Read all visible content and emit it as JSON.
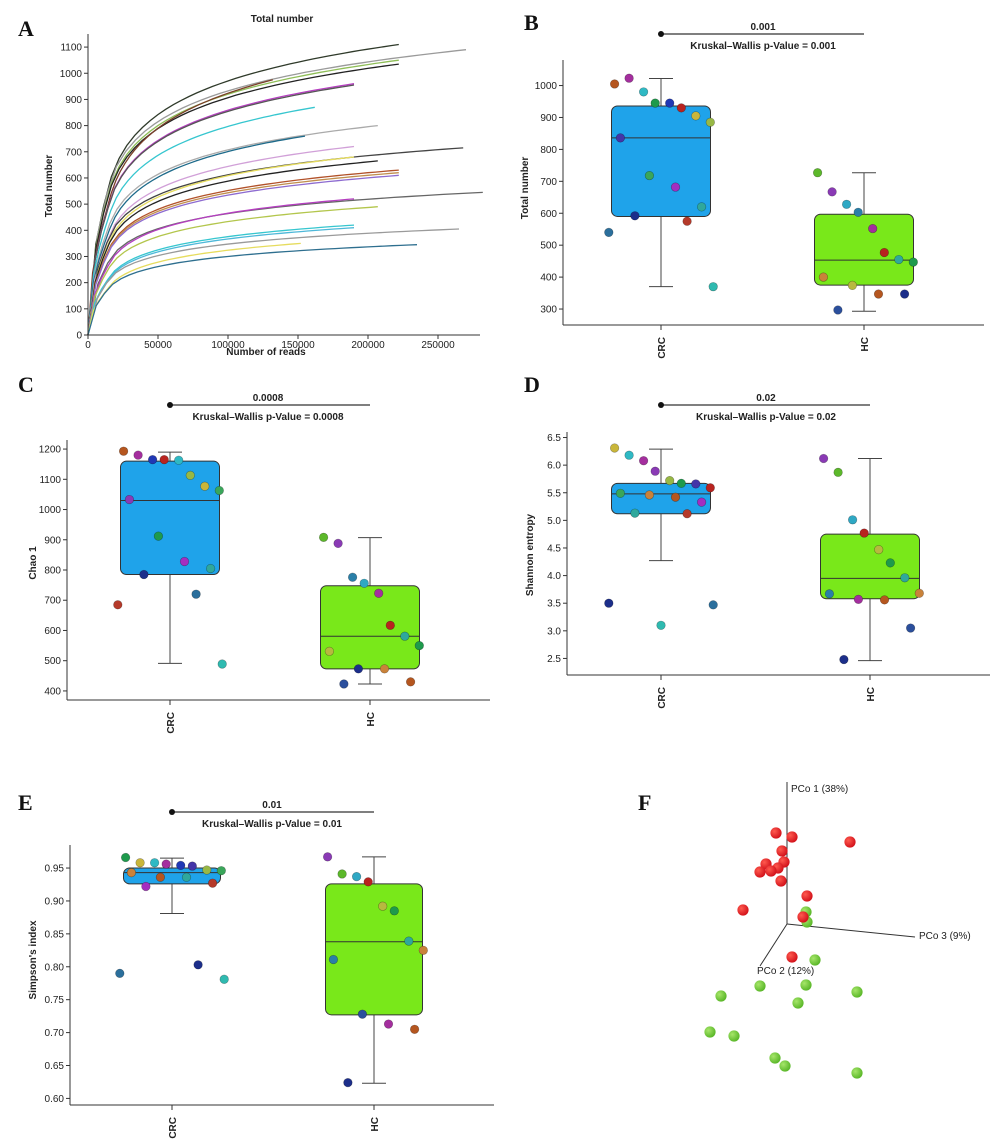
{
  "panel_labels": [
    "A",
    "B",
    "C",
    "D",
    "E",
    "F"
  ],
  "colors": {
    "crc_box": "#1fa3ea",
    "hc_box": "#79e81a",
    "red_dot": "#d4141c",
    "green_dot": "#5cb82a",
    "axis": "#333333"
  },
  "chart_data": [
    {
      "panel": "A",
      "type": "line",
      "title": "Total number",
      "xlabel": "Number of reads",
      "ylabel": "Total number",
      "xlim": [
        0,
        280000
      ],
      "ylim": [
        0,
        1150
      ],
      "xticks": [
        "0",
        "50000",
        "100000",
        "150000",
        "200000",
        "250000"
      ],
      "yticks": [
        "0",
        "100",
        "200",
        "300",
        "400",
        "500",
        "600",
        "700",
        "800",
        "900",
        "1000",
        "1100"
      ],
      "curves": [
        {
          "end_x": 222000,
          "end_y": 1110,
          "color": "#2f3a2a"
        },
        {
          "end_x": 270000,
          "end_y": 1090,
          "color": "#9a9a9a"
        },
        {
          "end_x": 222000,
          "end_y": 1050,
          "color": "#8fbe58"
        },
        {
          "end_x": 222000,
          "end_y": 1035,
          "color": "#222222"
        },
        {
          "end_x": 132000,
          "end_y": 975,
          "color": "#7a3f28"
        },
        {
          "end_x": 190000,
          "end_y": 960,
          "color": "#b53ec0"
        },
        {
          "end_x": 190000,
          "end_y": 955,
          "color": "#555555"
        },
        {
          "end_x": 162000,
          "end_y": 870,
          "color": "#36c6cf"
        },
        {
          "end_x": 207000,
          "end_y": 800,
          "color": "#aaaaaa"
        },
        {
          "end_x": 155000,
          "end_y": 760,
          "color": "#1d6a8a"
        },
        {
          "end_x": 190000,
          "end_y": 720,
          "color": "#d1a0d8"
        },
        {
          "end_x": 268000,
          "end_y": 715,
          "color": "#444444"
        },
        {
          "end_x": 190000,
          "end_y": 680,
          "color": "#e6dc5e"
        },
        {
          "end_x": 207000,
          "end_y": 665,
          "color": "#222222"
        },
        {
          "end_x": 222000,
          "end_y": 630,
          "color": "#b2522a"
        },
        {
          "end_x": 222000,
          "end_y": 620,
          "color": "#c08e4e"
        },
        {
          "end_x": 222000,
          "end_y": 610,
          "color": "#8d6bd0"
        },
        {
          "end_x": 282000,
          "end_y": 545,
          "color": "#666666"
        },
        {
          "end_x": 190000,
          "end_y": 520,
          "color": "#b53ec0"
        },
        {
          "end_x": 207000,
          "end_y": 490,
          "color": "#b3c64c"
        },
        {
          "end_x": 190000,
          "end_y": 420,
          "color": "#36c6cf"
        },
        {
          "end_x": 190000,
          "end_y": 410,
          "color": "#4db8d9"
        },
        {
          "end_x": 265000,
          "end_y": 405,
          "color": "#9a9a9a"
        },
        {
          "end_x": 152000,
          "end_y": 350,
          "color": "#e6dc5e"
        },
        {
          "end_x": 235000,
          "end_y": 345,
          "color": "#2e6f8f"
        }
      ]
    },
    {
      "panel": "B",
      "type": "box",
      "ylabel": "Total number",
      "ylim": [
        250,
        1080
      ],
      "yticks": [
        "300",
        "400",
        "500",
        "600",
        "700",
        "800",
        "900",
        "1000"
      ],
      "categories": [
        "CRC",
        "HC"
      ],
      "sig_label": "0.001",
      "stat_label": "Kruskal–Wallis p-Value = 0.001",
      "boxes": [
        {
          "group": "CRC",
          "min": 370,
          "q1": 590,
          "median": 836,
          "q3": 936,
          "max": 1022
        },
        {
          "group": "HC",
          "min": 293,
          "q1": 375,
          "median": 453,
          "q3": 597,
          "max": 727
        }
      ],
      "points": [
        {
          "group": "CRC",
          "y": 1005,
          "c": "#b5561f"
        },
        {
          "group": "CRC",
          "y": 1023,
          "c": "#a42e9e"
        },
        {
          "group": "CRC",
          "y": 980,
          "c": "#2fb9c4"
        },
        {
          "group": "CRC",
          "y": 945,
          "c": "#1e9a4c"
        },
        {
          "group": "CRC",
          "y": 945,
          "c": "#2038b5"
        },
        {
          "group": "CRC",
          "y": 930,
          "c": "#b8231f"
        },
        {
          "group": "CRC",
          "y": 905,
          "c": "#c9b63a"
        },
        {
          "group": "CRC",
          "y": 885,
          "c": "#98b845"
        },
        {
          "group": "CRC",
          "y": 836,
          "c": "#4435a8"
        },
        {
          "group": "CRC",
          "y": 718,
          "c": "#3aa65a"
        },
        {
          "group": "CRC",
          "y": 682,
          "c": "#a42ec0"
        },
        {
          "group": "CRC",
          "y": 620,
          "c": "#2fa89c"
        },
        {
          "group": "CRC",
          "y": 592,
          "c": "#1c2e8a"
        },
        {
          "group": "CRC",
          "y": 575,
          "c": "#b53a2a"
        },
        {
          "group": "CRC",
          "y": 540,
          "c": "#2b6f9c"
        },
        {
          "group": "CRC",
          "y": 370,
          "c": "#2fbab0"
        },
        {
          "group": "HC",
          "y": 727,
          "c": "#5cb82a"
        },
        {
          "group": "HC",
          "y": 667,
          "c": "#8a3ab5"
        },
        {
          "group": "HC",
          "y": 628,
          "c": "#2fa8c4"
        },
        {
          "group": "HC",
          "y": 603,
          "c": "#2a7fa8"
        },
        {
          "group": "HC",
          "y": 552,
          "c": "#a42e9e"
        },
        {
          "group": "HC",
          "y": 477,
          "c": "#b8231f"
        },
        {
          "group": "HC",
          "y": 455,
          "c": "#2fa89c"
        },
        {
          "group": "HC",
          "y": 447,
          "c": "#1e9a4c"
        },
        {
          "group": "HC",
          "y": 400,
          "c": "#c9823a"
        },
        {
          "group": "HC",
          "y": 374,
          "c": "#b8b840"
        },
        {
          "group": "HC",
          "y": 347,
          "c": "#b5561f"
        },
        {
          "group": "HC",
          "y": 347,
          "c": "#1c2e8a"
        },
        {
          "group": "HC",
          "y": 297,
          "c": "#2b4f9c"
        }
      ]
    },
    {
      "panel": "C",
      "type": "box",
      "ylabel": "Chao 1",
      "ylim": [
        370,
        1230
      ],
      "yticks": [
        "400",
        "500",
        "600",
        "700",
        "800",
        "900",
        "1000",
        "1100",
        "1200"
      ],
      "categories": [
        "CRC",
        "HC"
      ],
      "sig_label": "0.0008",
      "stat_label": "Kruskal–Wallis p-Value = 0.0008",
      "boxes": [
        {
          "group": "CRC",
          "min": 491,
          "q1": 785,
          "median": 1030,
          "q3": 1160,
          "max": 1190
        },
        {
          "group": "HC",
          "min": 423,
          "q1": 473,
          "median": 581,
          "q3": 748,
          "max": 907
        }
      ],
      "points": [
        {
          "group": "CRC",
          "y": 1193,
          "c": "#b5561f"
        },
        {
          "group": "CRC",
          "y": 1180,
          "c": "#a42e9e"
        },
        {
          "group": "CRC",
          "y": 1165,
          "c": "#2038b5"
        },
        {
          "group": "CRC",
          "y": 1165,
          "c": "#b8231f"
        },
        {
          "group": "CRC",
          "y": 1163,
          "c": "#2fb9c4"
        },
        {
          "group": "CRC",
          "y": 1113,
          "c": "#98b845"
        },
        {
          "group": "CRC",
          "y": 1077,
          "c": "#c9b63a"
        },
        {
          "group": "CRC",
          "y": 1063,
          "c": "#3aa65a"
        },
        {
          "group": "CRC",
          "y": 1033,
          "c": "#8a3ab5"
        },
        {
          "group": "CRC",
          "y": 912,
          "c": "#1e9a4c"
        },
        {
          "group": "CRC",
          "y": 828,
          "c": "#a42ec0"
        },
        {
          "group": "CRC",
          "y": 805,
          "c": "#2fa89c"
        },
        {
          "group": "CRC",
          "y": 785,
          "c": "#1c2e8a"
        },
        {
          "group": "CRC",
          "y": 720,
          "c": "#2b6f9c"
        },
        {
          "group": "CRC",
          "y": 685,
          "c": "#b53a2a"
        },
        {
          "group": "CRC",
          "y": 489,
          "c": "#2fbab0"
        },
        {
          "group": "HC",
          "y": 908,
          "c": "#5cb82a"
        },
        {
          "group": "HC",
          "y": 888,
          "c": "#8a3ab5"
        },
        {
          "group": "HC",
          "y": 776,
          "c": "#2a7fa8"
        },
        {
          "group": "HC",
          "y": 756,
          "c": "#2fa8c4"
        },
        {
          "group": "HC",
          "y": 723,
          "c": "#a42e9e"
        },
        {
          "group": "HC",
          "y": 617,
          "c": "#b8231f"
        },
        {
          "group": "HC",
          "y": 581,
          "c": "#2fa89c"
        },
        {
          "group": "HC",
          "y": 550,
          "c": "#1e9a4c"
        },
        {
          "group": "HC",
          "y": 531,
          "c": "#b8b840"
        },
        {
          "group": "HC",
          "y": 473,
          "c": "#1c2e8a"
        },
        {
          "group": "HC",
          "y": 473,
          "c": "#c9823a"
        },
        {
          "group": "HC",
          "y": 430,
          "c": "#b5561f"
        },
        {
          "group": "HC",
          "y": 423,
          "c": "#2b4f9c"
        }
      ]
    },
    {
      "panel": "D",
      "type": "box",
      "ylabel": "Shannon entropy",
      "ylim": [
        2.2,
        6.6
      ],
      "yticks": [
        "2.5",
        "3.0",
        "3.5",
        "4.0",
        "4.5",
        "5.0",
        "5.5",
        "6.0",
        "6.5"
      ],
      "categories": [
        "CRC",
        "HC"
      ],
      "sig_label": "0.02",
      "stat_label": "Kruskal–Wallis p-Value = 0.02",
      "boxes": [
        {
          "group": "CRC",
          "min": 4.27,
          "q1": 5.12,
          "median": 5.48,
          "q3": 5.67,
          "max": 6.29
        },
        {
          "group": "HC",
          "min": 2.46,
          "q1": 3.58,
          "median": 3.95,
          "q3": 4.75,
          "max": 6.12
        }
      ],
      "points": [
        {
          "group": "CRC",
          "y": 6.31,
          "c": "#c9b63a"
        },
        {
          "group": "CRC",
          "y": 6.18,
          "c": "#2fb9c4"
        },
        {
          "group": "CRC",
          "y": 6.08,
          "c": "#a42e9e"
        },
        {
          "group": "CRC",
          "y": 5.89,
          "c": "#8a3ab5"
        },
        {
          "group": "CRC",
          "y": 5.72,
          "c": "#98b845"
        },
        {
          "group": "CRC",
          "y": 5.67,
          "c": "#1e9a4c"
        },
        {
          "group": "CRC",
          "y": 5.66,
          "c": "#4435a8"
        },
        {
          "group": "CRC",
          "y": 5.59,
          "c": "#b8231f"
        },
        {
          "group": "CRC",
          "y": 5.49,
          "c": "#3aa65a"
        },
        {
          "group": "CRC",
          "y": 5.46,
          "c": "#c9823a"
        },
        {
          "group": "CRC",
          "y": 5.42,
          "c": "#b5561f"
        },
        {
          "group": "CRC",
          "y": 5.33,
          "c": "#a42ec0"
        },
        {
          "group": "CRC",
          "y": 5.13,
          "c": "#2fa89c"
        },
        {
          "group": "CRC",
          "y": 5.12,
          "c": "#b53a2a"
        },
        {
          "group": "CRC",
          "y": 3.5,
          "c": "#1c2e8a"
        },
        {
          "group": "CRC",
          "y": 3.47,
          "c": "#2b6f9c"
        },
        {
          "group": "CRC",
          "y": 3.1,
          "c": "#2fbab0"
        },
        {
          "group": "HC",
          "y": 6.12,
          "c": "#8a3ab5"
        },
        {
          "group": "HC",
          "y": 5.87,
          "c": "#5cb82a"
        },
        {
          "group": "HC",
          "y": 5.01,
          "c": "#2fa8c4"
        },
        {
          "group": "HC",
          "y": 4.77,
          "c": "#b8231f"
        },
        {
          "group": "HC",
          "y": 4.47,
          "c": "#b8b840"
        },
        {
          "group": "HC",
          "y": 4.23,
          "c": "#1e9a4c"
        },
        {
          "group": "HC",
          "y": 3.96,
          "c": "#2fa89c"
        },
        {
          "group": "HC",
          "y": 3.68,
          "c": "#c9823a"
        },
        {
          "group": "HC",
          "y": 3.67,
          "c": "#2a7fa8"
        },
        {
          "group": "HC",
          "y": 3.57,
          "c": "#a42e9e"
        },
        {
          "group": "HC",
          "y": 3.56,
          "c": "#b5561f"
        },
        {
          "group": "HC",
          "y": 3.05,
          "c": "#2b4f9c"
        },
        {
          "group": "HC",
          "y": 2.48,
          "c": "#1c2e8a"
        }
      ]
    },
    {
      "panel": "E",
      "type": "box",
      "ylabel": "Simpson's index",
      "ylim": [
        0.59,
        0.985
      ],
      "yticks": [
        "0.60",
        "0.65",
        "0.70",
        "0.75",
        "0.80",
        "0.85",
        "0.90",
        "0.95"
      ],
      "categories": [
        "CRC",
        "HC"
      ],
      "sig_label": "0.01",
      "stat_label": "Kruskal–Wallis p-Value = 0.01",
      "boxes": [
        {
          "group": "CRC",
          "min": 0.881,
          "q1": 0.926,
          "median": 0.943,
          "q3": 0.95,
          "max": 0.965
        },
        {
          "group": "HC",
          "min": 0.623,
          "q1": 0.727,
          "median": 0.838,
          "q3": 0.926,
          "max": 0.967
        }
      ],
      "points": [
        {
          "group": "CRC",
          "y": 0.966,
          "c": "#1e9a4c"
        },
        {
          "group": "CRC",
          "y": 0.958,
          "c": "#c9b63a"
        },
        {
          "group": "CRC",
          "y": 0.958,
          "c": "#2fb9c4"
        },
        {
          "group": "CRC",
          "y": 0.956,
          "c": "#a42e9e"
        },
        {
          "group": "CRC",
          "y": 0.954,
          "c": "#2038b5"
        },
        {
          "group": "CRC",
          "y": 0.953,
          "c": "#4435a8"
        },
        {
          "group": "CRC",
          "y": 0.947,
          "c": "#98b845"
        },
        {
          "group": "CRC",
          "y": 0.946,
          "c": "#3aa65a"
        },
        {
          "group": "CRC",
          "y": 0.943,
          "c": "#c9823a"
        },
        {
          "group": "CRC",
          "y": 0.936,
          "c": "#b5561f"
        },
        {
          "group": "CRC",
          "y": 0.936,
          "c": "#2fa89c"
        },
        {
          "group": "CRC",
          "y": 0.927,
          "c": "#b53a2a"
        },
        {
          "group": "CRC",
          "y": 0.922,
          "c": "#a42ec0"
        },
        {
          "group": "CRC",
          "y": 0.803,
          "c": "#1c2e8a"
        },
        {
          "group": "CRC",
          "y": 0.79,
          "c": "#2b6f9c"
        },
        {
          "group": "CRC",
          "y": 0.781,
          "c": "#2fbab0"
        },
        {
          "group": "HC",
          "y": 0.967,
          "c": "#8a3ab5"
        },
        {
          "group": "HC",
          "y": 0.941,
          "c": "#5cb82a"
        },
        {
          "group": "HC",
          "y": 0.937,
          "c": "#2fa8c4"
        },
        {
          "group": "HC",
          "y": 0.929,
          "c": "#b8231f"
        },
        {
          "group": "HC",
          "y": 0.892,
          "c": "#b8b840"
        },
        {
          "group": "HC",
          "y": 0.885,
          "c": "#1e9a4c"
        },
        {
          "group": "HC",
          "y": 0.839,
          "c": "#2fa89c"
        },
        {
          "group": "HC",
          "y": 0.825,
          "c": "#c9823a"
        },
        {
          "group": "HC",
          "y": 0.811,
          "c": "#2a7fa8"
        },
        {
          "group": "HC",
          "y": 0.728,
          "c": "#2b4f9c"
        },
        {
          "group": "HC",
          "y": 0.713,
          "c": "#a42e9e"
        },
        {
          "group": "HC",
          "y": 0.705,
          "c": "#b5561f"
        },
        {
          "group": "HC",
          "y": 0.624,
          "c": "#1c2e8a"
        }
      ]
    },
    {
      "panel": "F",
      "type": "scatter",
      "axis_labels": [
        "PCo 1 (38%)",
        "PCo 2 (12%)",
        "PCo 3 (9%)"
      ],
      "red_points": [
        [
          776,
          833
        ],
        [
          792,
          837
        ],
        [
          850,
          842
        ],
        [
          782,
          851
        ],
        [
          766,
          864
        ],
        [
          784,
          862
        ],
        [
          778,
          868
        ],
        [
          771,
          871
        ],
        [
          760,
          872
        ],
        [
          781,
          881
        ],
        [
          807,
          896
        ],
        [
          743,
          910
        ],
        [
          803,
          917
        ],
        [
          792,
          957
        ]
      ],
      "green_points": [
        [
          806,
          912
        ],
        [
          807,
          922
        ],
        [
          815,
          960
        ],
        [
          806,
          985
        ],
        [
          760,
          986
        ],
        [
          857,
          992
        ],
        [
          721,
          996
        ],
        [
          798,
          1003
        ],
        [
          710,
          1032
        ],
        [
          734,
          1036
        ],
        [
          775,
          1058
        ],
        [
          785,
          1066
        ],
        [
          857,
          1073
        ]
      ]
    }
  ]
}
